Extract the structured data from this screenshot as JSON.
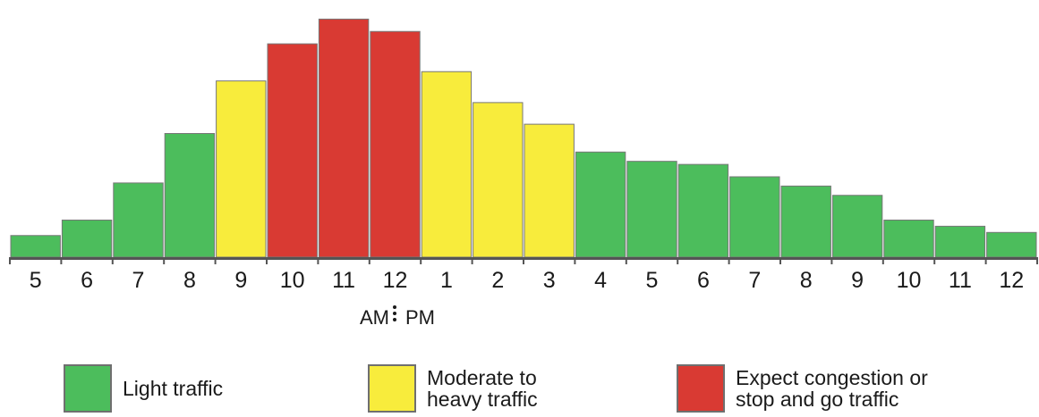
{
  "chart_data": {
    "type": "bar",
    "categories": [
      "5",
      "6",
      "7",
      "8",
      "9",
      "10",
      "11",
      "12",
      "1",
      "2",
      "3",
      "4",
      "5",
      "6",
      "7",
      "8",
      "9",
      "10",
      "11",
      "12"
    ],
    "values": [
      7,
      12,
      24,
      40,
      57,
      69,
      77,
      73,
      60,
      50,
      43,
      34,
      31,
      30,
      26,
      23,
      20,
      12,
      10,
      8
    ],
    "classes": [
      "light",
      "light",
      "light",
      "light",
      "moderate",
      "congestion",
      "congestion",
      "congestion",
      "moderate",
      "moderate",
      "moderate",
      "light",
      "light",
      "light",
      "light",
      "light",
      "light",
      "light",
      "light",
      "light"
    ],
    "ylim": [
      0,
      80
    ],
    "xlabel": "",
    "ylabel": "",
    "title": "",
    "grid": false,
    "ampm": {
      "am": "AM",
      "pm": "PM"
    },
    "colors": {
      "light": "#4cbd5c",
      "moderate": "#f8ec3c",
      "congestion": "#d93a33",
      "axis": "#555555"
    },
    "legend": {
      "position": "bottom",
      "entries": [
        {
          "key": "light",
          "label": "Light traffic"
        },
        {
          "key": "moderate",
          "label": "Moderate to\nheavy traffic"
        },
        {
          "key": "congestion",
          "label": "Expect congestion or\nstop and go traffic"
        }
      ]
    }
  }
}
